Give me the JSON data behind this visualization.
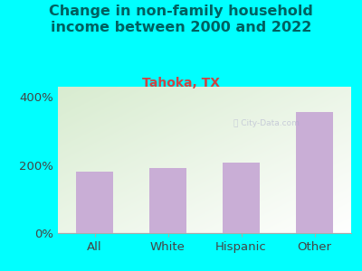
{
  "title": "Change in non-family household\nincome between 2000 and 2022",
  "subtitle": "Tahoka, TX",
  "categories": [
    "All",
    "White",
    "Hispanic",
    "Other"
  ],
  "values": [
    180,
    192,
    207,
    355
  ],
  "bar_color": "#c9aed6",
  "background_color": "#00FFFF",
  "plot_bg_color_top_left": "#d8ecd0",
  "plot_bg_color_bottom_right": "#ffffff",
  "title_color": "#006060",
  "subtitle_color": "#cc4444",
  "tick_color": "#444444",
  "ylim": [
    0,
    430
  ],
  "yticks": [
    0,
    200,
    400
  ],
  "ytick_labels": [
    "0%",
    "200%",
    "400%"
  ],
  "title_fontsize": 11.5,
  "subtitle_fontsize": 10,
  "tick_fontsize": 9.5,
  "watermark": "ⓘ City-Data.com"
}
